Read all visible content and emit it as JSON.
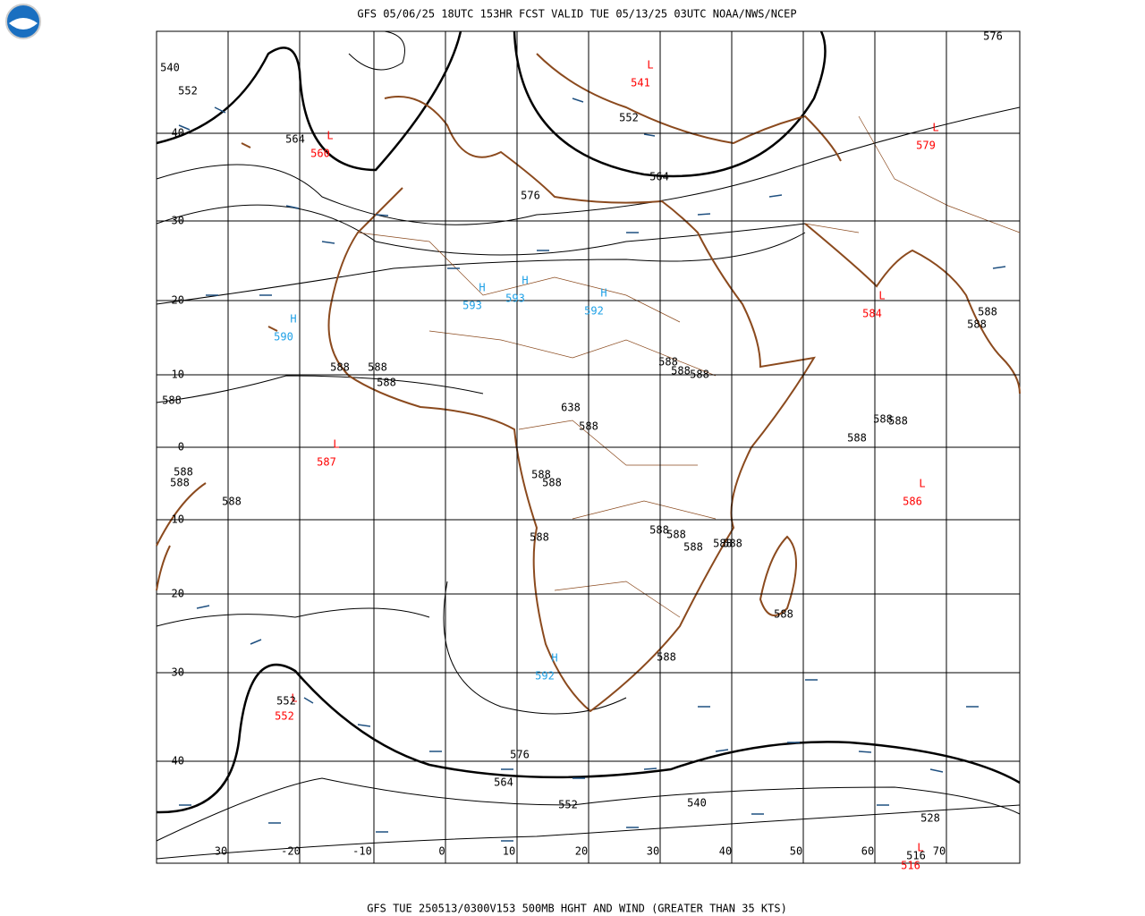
{
  "header": {
    "title": "GFS 05/06/25 18UTC 153HR FCST VALID TUE 05/13/25 03UTC NOAA/NWS/NCEP"
  },
  "footer": {
    "caption": "GFS TUE 250513/0300V153 500MB HGHT AND WIND (GREATER THAN 35 KTS)"
  },
  "lat_labels": [
    "40",
    "30",
    "20",
    "10",
    "0",
    "-10",
    "-20",
    "-30",
    "-40"
  ],
  "lon_labels": [
    "30",
    "-20",
    "-10",
    "0",
    "10",
    "20",
    "30",
    "40",
    "50",
    "60",
    "70"
  ],
  "centers": [
    {
      "symbol": "L",
      "value": "560"
    },
    {
      "symbol": "L",
      "value": "541"
    },
    {
      "symbol": "L",
      "value": "579"
    },
    {
      "symbol": "H",
      "value": "590"
    },
    {
      "symbol": "H",
      "value": "593"
    },
    {
      "symbol": "H",
      "value": "593"
    },
    {
      "symbol": "H",
      "value": "592"
    },
    {
      "symbol": "L",
      "value": "584"
    },
    {
      "symbol": "L",
      "value": "587"
    },
    {
      "symbol": "L",
      "value": "586"
    },
    {
      "symbol": "H",
      "value": "592"
    },
    {
      "symbol": "L",
      "value": "552"
    },
    {
      "symbol": "L",
      "value": "516"
    }
  ],
  "contour_labels": [
    "564",
    "552",
    "564",
    "576",
    "540",
    "552",
    "576",
    "588",
    "588",
    "588",
    "588",
    "588",
    "588",
    "588",
    "638",
    "588",
    "588",
    "588",
    "588",
    "588",
    "588",
    "588",
    "588",
    "588",
    "588",
    "588",
    "588",
    "588",
    "588",
    "588",
    "588",
    "588",
    "588",
    "588",
    "552",
    "576",
    "564",
    "552",
    "540",
    "528",
    "516"
  ]
}
